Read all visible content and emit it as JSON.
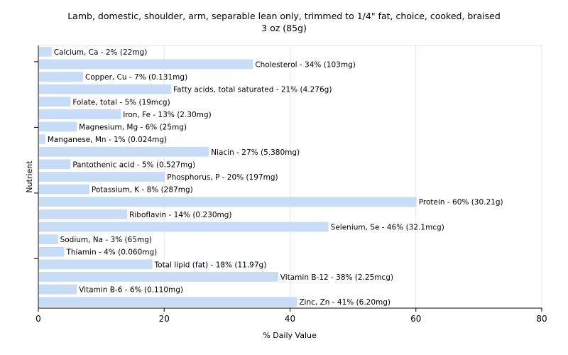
{
  "chart_data": {
    "type": "bar",
    "orientation": "horizontal",
    "title": "Lamb, domestic, shoulder, arm, separable lean only, trimmed to 1/4\" fat, choice, cooked, braised",
    "subtitle": "3 oz (85g)",
    "xlabel": "% Daily Value",
    "ylabel": "Nutrient",
    "xlim": [
      0,
      80
    ],
    "xticks": [
      0,
      20,
      40,
      60,
      80
    ],
    "grid": true,
    "bar_color": "#c7dcf7",
    "categories": [
      "Calcium, Ca",
      "Cholesterol",
      "Copper, Cu",
      "Fatty acids, total saturated",
      "Folate, total",
      "Iron, Fe",
      "Magnesium, Mg",
      "Manganese, Mn",
      "Niacin",
      "Pantothenic acid",
      "Phosphorus, P",
      "Potassium, K",
      "Protein",
      "Riboflavin",
      "Selenium, Se",
      "Sodium, Na",
      "Thiamin",
      "Total lipid (fat)",
      "Vitamin B-12",
      "Vitamin B-6",
      "Zinc, Zn"
    ],
    "values": [
      2,
      34,
      7,
      21,
      5,
      13,
      6,
      1,
      27,
      5,
      20,
      8,
      60,
      14,
      46,
      3,
      4,
      18,
      38,
      6,
      41
    ],
    "labels": [
      "Calcium, Ca - 2% (22mg)",
      "Cholesterol - 34% (103mg)",
      "Copper, Cu - 7% (0.131mg)",
      "Fatty acids, total saturated - 21% (4.276g)",
      "Folate, total - 5% (19mcg)",
      "Iron, Fe - 13% (2.30mg)",
      "Magnesium, Mg - 6% (25mg)",
      "Manganese, Mn - 1% (0.024mg)",
      "Niacin - 27% (5.380mg)",
      "Pantothenic acid - 5% (0.527mg)",
      "Phosphorus, P - 20% (197mg)",
      "Potassium, K - 8% (287mg)",
      "Protein - 60% (30.21g)",
      "Riboflavin - 14% (0.230mg)",
      "Selenium, Se - 46% (32.1mcg)",
      "Sodium, Na - 3% (65mg)",
      "Thiamin - 4% (0.060mg)",
      "Total lipid (fat) - 18% (11.97g)",
      "Vitamin B-12 - 38% (2.25mcg)",
      "Vitamin B-6 - 6% (0.110mg)",
      "Zinc, Zn - 41% (6.20mg)"
    ]
  }
}
